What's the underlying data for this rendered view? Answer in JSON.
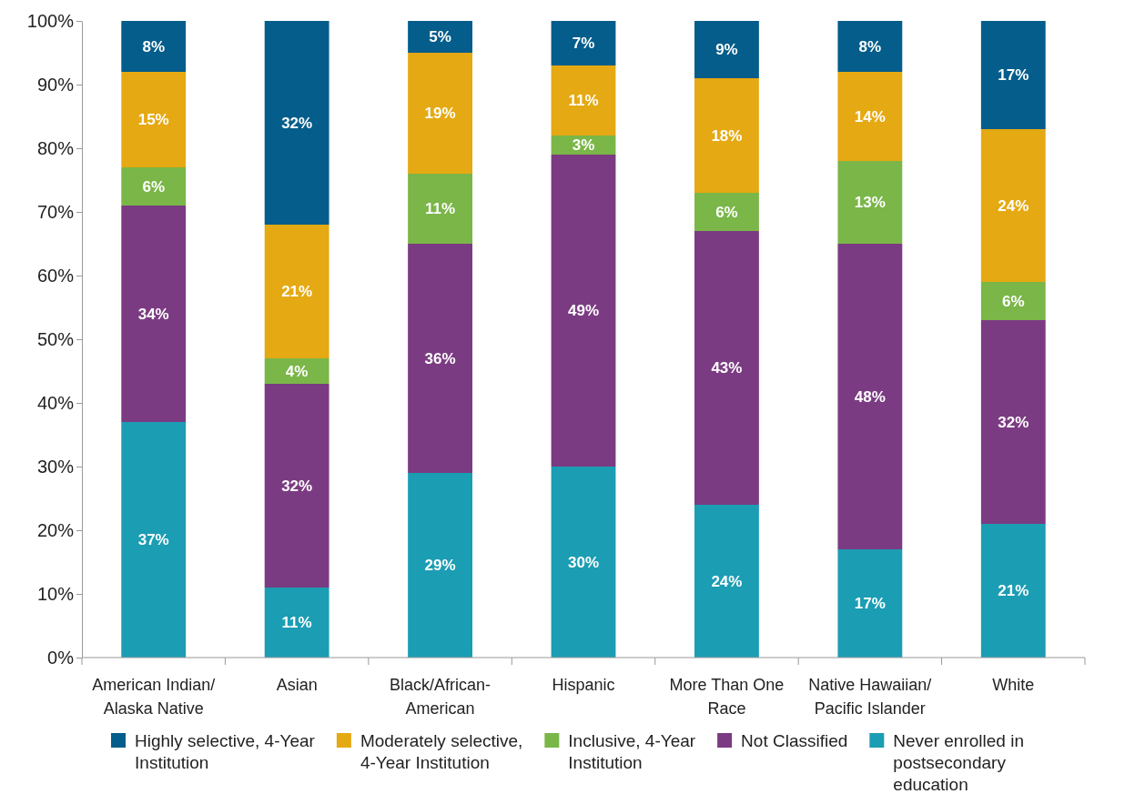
{
  "chart_data": {
    "type": "bar",
    "stacked": true,
    "categories": [
      "American Indian/Alaska Native",
      "Asian",
      "Black/African-American",
      "Hispanic",
      "More Than One Race",
      "Native Hawaiian/Pacific Islander",
      "White"
    ],
    "series": [
      {
        "name": "Never enrolled in postsecondary education",
        "color": "#1b9db3",
        "values": [
          37,
          11,
          29,
          30,
          24,
          17,
          21
        ],
        "value_labels": [
          "37%",
          "11%",
          "29%",
          "30%",
          "24%",
          "17%",
          "21%"
        ]
      },
      {
        "name": "Not Classified",
        "color": "#7b3b82",
        "values": [
          34,
          32,
          36,
          49,
          43,
          48,
          32
        ],
        "value_labels": [
          "34%",
          "32%",
          "36%",
          "49%",
          "43%",
          "48%",
          "32%"
        ]
      },
      {
        "name": "Inclusive, 4-Year Institution",
        "color": "#7ab648",
        "values": [
          6,
          4,
          11,
          3,
          6,
          13,
          6
        ],
        "value_labels": [
          "6%",
          "4%",
          "11%",
          "3%",
          "6%",
          "13%",
          "6%"
        ]
      },
      {
        "name": "Moderately selective, 4-Year Institution",
        "color": "#e5a913",
        "values": [
          15,
          21,
          19,
          11,
          18,
          14,
          24
        ],
        "value_labels": [
          "15%",
          "21%",
          "19%",
          "11%",
          "18%",
          "14%",
          "24%"
        ]
      },
      {
        "name": "Highly selective, 4-Year Institution",
        "color": "#045d8a",
        "values": [
          8,
          32,
          5,
          7,
          9,
          8,
          17
        ],
        "value_labels": [
          "8%",
          "32%",
          "5%",
          "7%",
          "9%",
          "8%",
          "17%"
        ]
      }
    ],
    "ylim": [
      0,
      100
    ],
    "yticks": [
      {
        "value": 0,
        "label": "0%"
      },
      {
        "value": 10,
        "label": "10%"
      },
      {
        "value": 20,
        "label": "20%"
      },
      {
        "value": 30,
        "label": "30%"
      },
      {
        "value": 40,
        "label": "40%"
      },
      {
        "value": 50,
        "label": "50%"
      },
      {
        "value": 60,
        "label": "60%"
      },
      {
        "value": 70,
        "label": "70%"
      },
      {
        "value": 80,
        "label": "80%"
      },
      {
        "value": 90,
        "label": "90%"
      },
      {
        "value": 100,
        "label": "100%"
      }
    ],
    "grid": false,
    "legend": "bottom"
  }
}
